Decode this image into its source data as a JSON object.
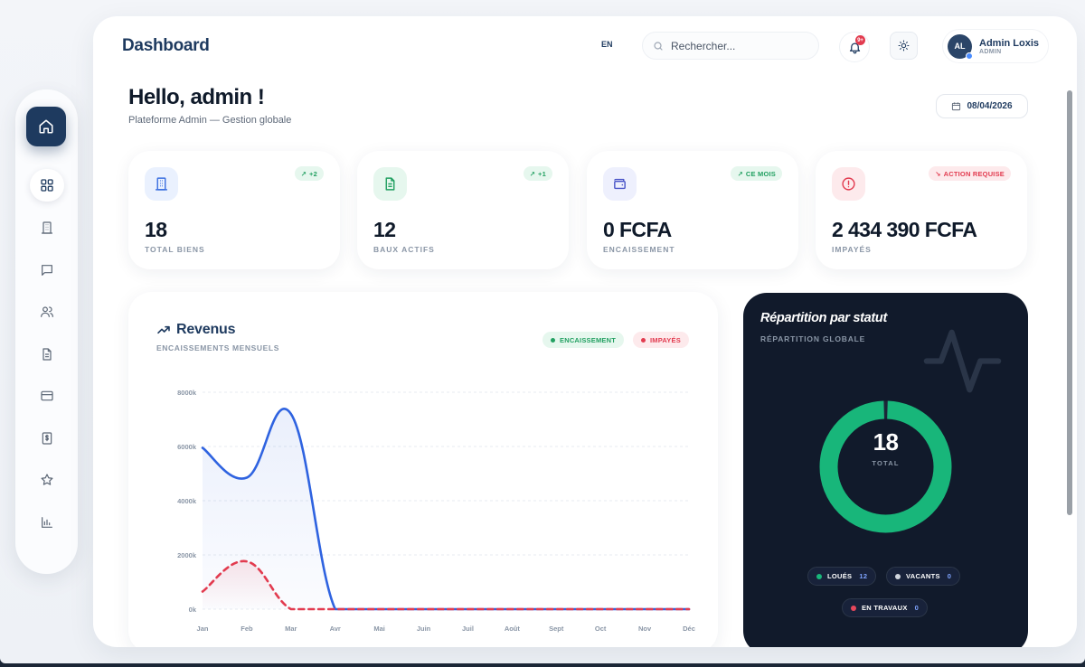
{
  "header": {
    "title": "Dashboard",
    "lang": "EN",
    "search_placeholder": "Rechercher...",
    "notification_count": "9+",
    "user": {
      "initials": "AL",
      "name": "Admin Loxis",
      "role": "ADMIN"
    }
  },
  "welcome": {
    "greeting": "Hello, admin !",
    "subtitle": "Plateforme Admin — Gestion globale",
    "date": "08/04/2026"
  },
  "sidebar": {
    "items": [
      {
        "name": "home-icon",
        "active": false
      },
      {
        "name": "dashboard-grid-icon",
        "active": true
      },
      {
        "name": "building-icon",
        "active": false
      },
      {
        "name": "message-icon",
        "active": false
      },
      {
        "name": "users-icon",
        "active": false
      },
      {
        "name": "document-icon",
        "active": false
      },
      {
        "name": "card-icon",
        "active": false
      },
      {
        "name": "invoice-dollar-icon",
        "active": false
      },
      {
        "name": "star-icon",
        "active": false
      },
      {
        "name": "bar-chart-icon",
        "active": false
      }
    ]
  },
  "stats": [
    {
      "value": "18",
      "label": "TOTAL BIENS",
      "badge": "+2",
      "badge_type": "green",
      "icon": "building-icon",
      "icon_bg": "#eaf1fe",
      "icon_color": "#3b6fe0"
    },
    {
      "value": "12",
      "label": "BAUX ACTIFS",
      "badge": "+1",
      "badge_type": "green",
      "icon": "document-icon",
      "icon_bg": "#e6f7ee",
      "icon_color": "#22a061"
    },
    {
      "value": "0 FCFA",
      "label": "ENCAISSEMENT",
      "badge": "CE MOIS",
      "badge_type": "green",
      "icon": "wallet-icon",
      "icon_bg": "#eef0fd",
      "icon_color": "#4a55c8"
    },
    {
      "value": "2 434 390 FCFA",
      "label": "IMPAYÉS",
      "badge": "ACTION REQUISE",
      "badge_type": "red",
      "icon": "alert-icon",
      "icon_bg": "#fdeaec",
      "icon_color": "#e23b4f"
    }
  ],
  "revenue": {
    "title": "Revenus",
    "subtitle": "ENCAISSEMENTS MENSUELS",
    "legend": [
      {
        "label": "ENCAISSEMENT",
        "color": "#22a061",
        "bg": "#e6f7ee"
      },
      {
        "label": "IMPAYÉS",
        "color": "#e23b4f",
        "bg": "#fdeaec"
      }
    ]
  },
  "chart_data": {
    "type": "line",
    "categories": [
      "Jan",
      "Feb",
      "Mar",
      "Avr",
      "Mai",
      "Juin",
      "Juil",
      "Août",
      "Sept",
      "Oct",
      "Nov",
      "Déc"
    ],
    "series": [
      {
        "name": "ENCAISSEMENT",
        "color": "#2f63e0",
        "values": [
          5950,
          4850,
          7200,
          0,
          0,
          0,
          0,
          0,
          0,
          0,
          0,
          0
        ]
      },
      {
        "name": "IMPAYÉS",
        "color": "#e23b4f",
        "values": [
          650,
          1760,
          0,
          0,
          0,
          0,
          0,
          0,
          0,
          0,
          0,
          0
        ]
      }
    ],
    "yticks": [
      "0k",
      "2000k",
      "4000k",
      "6000k",
      "8000k"
    ],
    "ylim": [
      0,
      8000
    ],
    "grid": true
  },
  "status": {
    "title": "Répartition par statut",
    "subtitle": "RÉPARTITION GLOBALE",
    "total": "18",
    "total_label": "TOTAL",
    "items": [
      {
        "label": "LOUÉS",
        "count": "12",
        "color": "#18b67a"
      },
      {
        "label": "VACANTS",
        "count": "0",
        "color": "#d0d5dd"
      },
      {
        "label": "EN TRAVAUX",
        "count": "0",
        "color": "#e8485c"
      }
    ]
  }
}
